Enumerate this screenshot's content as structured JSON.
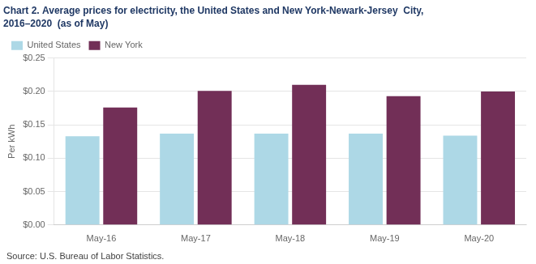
{
  "chart_data": {
    "type": "bar",
    "title": "Chart 2. Average prices for electricity, the United States and New York-Newark-Jersey  City,",
    "subtitle": "2016–2020  (as of May)",
    "ylabel": "Per kWh",
    "annotations": [
      "Source: U.S. Bureau of Labor Statistics."
    ],
    "categories": [
      "May-16",
      "May-17",
      "May-18",
      "May-19",
      "May-20"
    ],
    "series": [
      {
        "name": "United States",
        "color": "#ADD8E6",
        "values": [
          0.133,
          0.137,
          0.137,
          0.137,
          0.134
        ]
      },
      {
        "name": "New York",
        "color": "#722F57",
        "values": [
          0.176,
          0.201,
          0.21,
          0.193,
          0.2
        ]
      }
    ],
    "ylim": [
      0.0,
      0.25
    ],
    "yticks": [
      {
        "value": 0.0,
        "label": "$0.00"
      },
      {
        "value": 0.05,
        "label": "$0.05"
      },
      {
        "value": 0.1,
        "label": "$0.10"
      },
      {
        "value": 0.15,
        "label": "$0.15"
      },
      {
        "value": 0.2,
        "label": "$0.20"
      },
      {
        "value": 0.25,
        "label": "$0.25"
      }
    ],
    "grid": true,
    "legend": "upper left"
  }
}
